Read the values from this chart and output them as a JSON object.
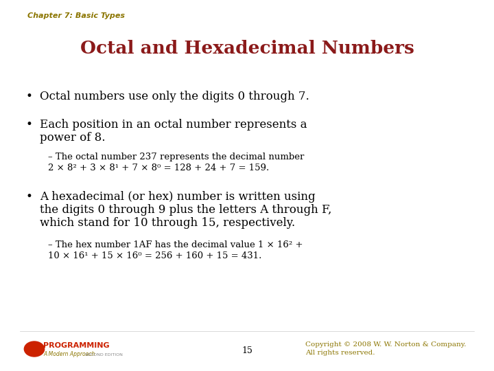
{
  "background_color": "#ffffff",
  "chapter_label": "Chapter 7: Basic Types",
  "chapter_label_color": "#8B7500",
  "title": "Octal and Hexadecimal Numbers",
  "title_color": "#8B1A1A",
  "bullet1": "Octal numbers use only the digits 0 through 7.",
  "bullet2_line1": "Each position in an octal number represents a",
  "bullet2_line2": "power of 8.",
  "sub1_line1": "– The octal number 237 represents the decimal number",
  "sub1_line2": "2 × 8² + 3 × 8¹ + 7 × 8⁰ = 128 + 24 + 7 = 159.",
  "bullet3_line1": "A hexadecimal (or hex) number is written using",
  "bullet3_line2": "the digits 0 through 9 plus the letters A through F,",
  "bullet3_line3": "which stand for 10 through 15, respectively.",
  "sub2_line1": "– The hex number 1AF has the decimal value 1 × 16² +",
  "sub2_line2": "10 × 16¹ + 15 × 16⁰ = 256 + 160 + 15 = 431.",
  "page_number": "15",
  "copyright": "Copyright © 2008 W. W. Norton & Company.\nAll rights reserved.",
  "text_color": "#000000",
  "copyright_color": "#8B7500",
  "font_size_chapter": 8,
  "font_size_title": 19,
  "font_size_bullet": 12,
  "font_size_sub": 9.5,
  "font_size_footer": 7.5,
  "font_size_page": 9
}
